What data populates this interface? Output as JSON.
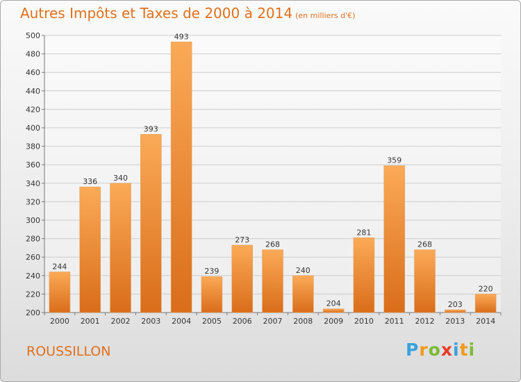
{
  "header": {
    "title": "Autres Impôts et Taxes de 2000 à 2014",
    "subtitle": "(en milliers d'€)"
  },
  "footer": {
    "town": "ROUSSILLON",
    "logo_text": "Proxiti",
    "logo_letters": [
      {
        "ch": "P",
        "color": "#3aa1dc"
      },
      {
        "ch": "r",
        "color": "#f09a1c"
      },
      {
        "ch": "o",
        "color": "#7cbb34"
      },
      {
        "ch": "x",
        "color": "#e83a2c"
      },
      {
        "ch": "i",
        "color": "#3aa1dc"
      },
      {
        "ch": "t",
        "color": "#f09a1c"
      },
      {
        "ch": "i",
        "color": "#7cbb34"
      }
    ]
  },
  "colors": {
    "bar_top": "#fbaa57",
    "bar_bottom": "#d96d1a",
    "title": "#e0701c",
    "grid": "#cccccc"
  },
  "chart_data": {
    "type": "bar",
    "title": "Autres Impôts et Taxes de 2000 à 2014",
    "subtitle": "(en milliers d'€)",
    "categories": [
      "2000",
      "2001",
      "2002",
      "2003",
      "2004",
      "2005",
      "2006",
      "2007",
      "2008",
      "2009",
      "2010",
      "2011",
      "2012",
      "2013",
      "2014"
    ],
    "values": [
      244,
      336,
      340,
      393,
      493,
      239,
      273,
      268,
      240,
      204,
      281,
      359,
      268,
      203,
      220
    ],
    "ylim": [
      200,
      500
    ],
    "yticks": [
      200,
      220,
      240,
      260,
      280,
      300,
      320,
      340,
      360,
      380,
      400,
      420,
      440,
      460,
      480,
      500
    ],
    "grid": true,
    "data_labels": true
  }
}
